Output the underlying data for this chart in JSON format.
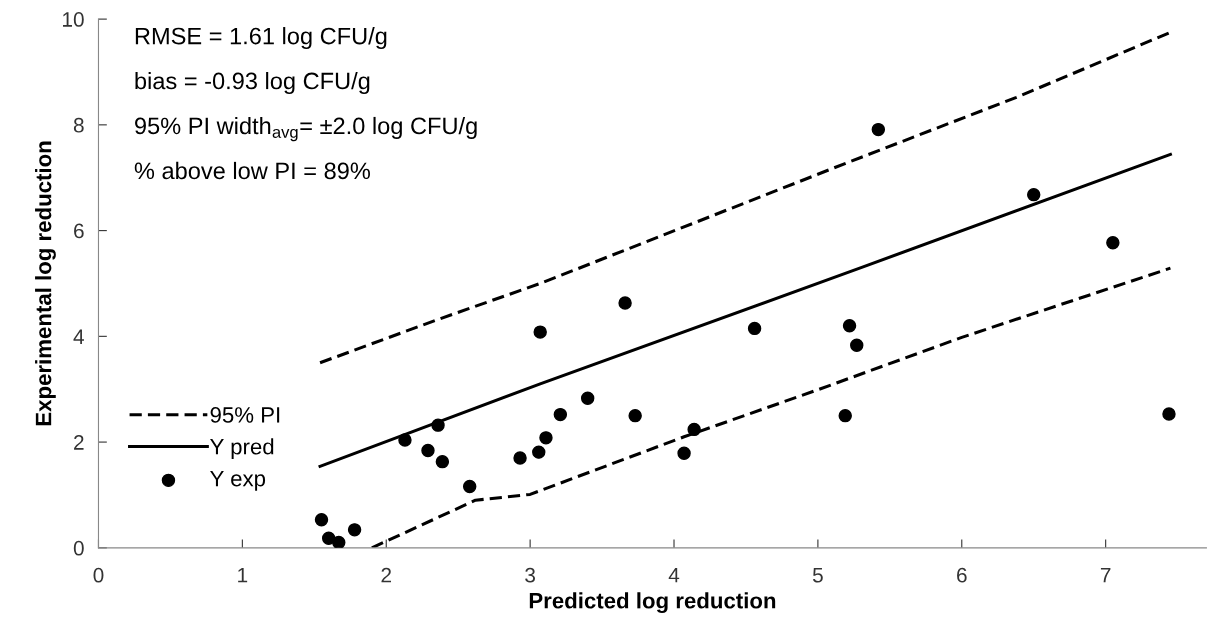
{
  "chart_data": {
    "type": "scatter",
    "xlabel": "Predicted log reduction",
    "ylabel": "Experimental log reduction",
    "annotations": [
      "RMSE = 1.61 log CFU/g",
      "bias = -0.93 log CFU/g",
      "95% PI width$_{avg}$= ±2.0 log CFU/g",
      "% above low PI = 89%"
    ],
    "xlim": [
      0,
      7.7
    ],
    "xticks": [
      0,
      1,
      2,
      3,
      4,
      5,
      6,
      7
    ],
    "ylim": [
      0,
      10
    ],
    "yticks": [
      0,
      2,
      4,
      6,
      8,
      10
    ],
    "grid": false,
    "legend": "lower left",
    "series": [
      {
        "name": "95% PI",
        "type": "line",
        "line_style": "dashed",
        "marker": "none",
        "color": "#000000",
        "x": [
          1.54,
          2.34,
          3.07,
          5.2,
          6.38,
          7.45
        ],
        "values": [
          3.5,
          4.3,
          5.0,
          7.28,
          8.52,
          9.75
        ]
      },
      {
        "type": "line",
        "line_style": "dashed",
        "marker": "none",
        "color": "#000000",
        "x": [
          1.9,
          2.62,
          3.0,
          4.07,
          5.0,
          6.0,
          7.45
        ],
        "values": [
          0,
          0.9,
          1.01,
          2.1,
          2.99,
          3.98,
          5.29
        ]
      },
      {
        "name": "Y pred",
        "type": "line",
        "line_style": "solid",
        "marker": "none",
        "color": "#000000",
        "x": [
          1.54,
          3.07,
          5.3,
          7.45
        ],
        "values": [
          1.54,
          3.1,
          5.3,
          7.44
        ]
      },
      {
        "name": "Y exp",
        "marker": "circle",
        "color": "#000000",
        "x": [
          1.55,
          1.6,
          1.67,
          1.78,
          2.13,
          2.29,
          2.36,
          2.39,
          2.58,
          2.93,
          3.06,
          3.11,
          3.07,
          3.21,
          3.4,
          3.66,
          3.73,
          4.07,
          4.14,
          4.56,
          5.19,
          5.22,
          5.27,
          5.42,
          6.5,
          7.05,
          7.44
        ],
        "values": [
          0.53,
          0.18,
          0.1,
          0.34,
          2.04,
          1.84,
          2.32,
          1.63,
          1.16,
          1.7,
          1.81,
          2.08,
          4.08,
          2.52,
          2.83,
          4.63,
          2.5,
          1.79,
          2.24,
          4.15,
          2.5,
          4.2,
          3.83,
          7.91,
          6.68,
          5.77,
          2.53
        ]
      }
    ]
  }
}
